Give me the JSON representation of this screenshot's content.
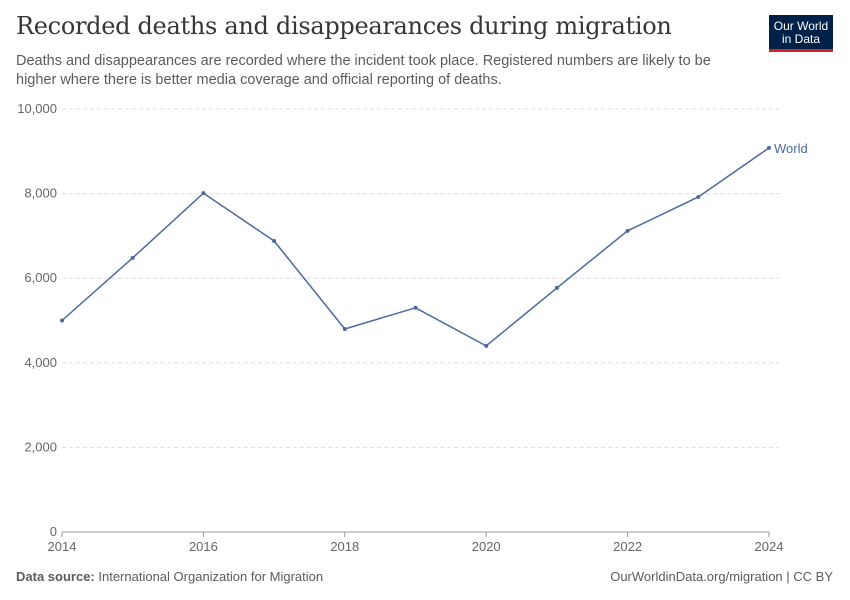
{
  "header": {
    "title": "Recorded deaths and disappearances during migration",
    "subtitle": "Deaths and disappearances are recorded where the incident took place. Registered numbers are likely to be higher where there is better media coverage and official reporting of deaths.",
    "logo": "Our World in Data"
  },
  "footer": {
    "source_label": "Data source:",
    "source": "International Organization for Migration",
    "link": "OurWorldinData.org/migration | CC BY"
  },
  "chart_data": {
    "type": "line",
    "x": [
      2014,
      2015,
      2016,
      2017,
      2018,
      2019,
      2020,
      2021,
      2022,
      2023,
      2024
    ],
    "series": [
      {
        "name": "World",
        "values": [
          5000,
          6480,
          8010,
          6880,
          4800,
          5300,
          4400,
          5770,
          7120,
          7920,
          9080
        ],
        "color": "#4c6a9c"
      }
    ],
    "xticks": [
      "2014",
      "2016",
      "2018",
      "2020",
      "2022",
      "2024"
    ],
    "yticks": [
      "0",
      "2,000",
      "4,000",
      "6,000",
      "8,000",
      "10,000"
    ],
    "ylim": [
      0,
      10000
    ],
    "grid": "horizontal dashed",
    "legend": "end-of-line label"
  }
}
